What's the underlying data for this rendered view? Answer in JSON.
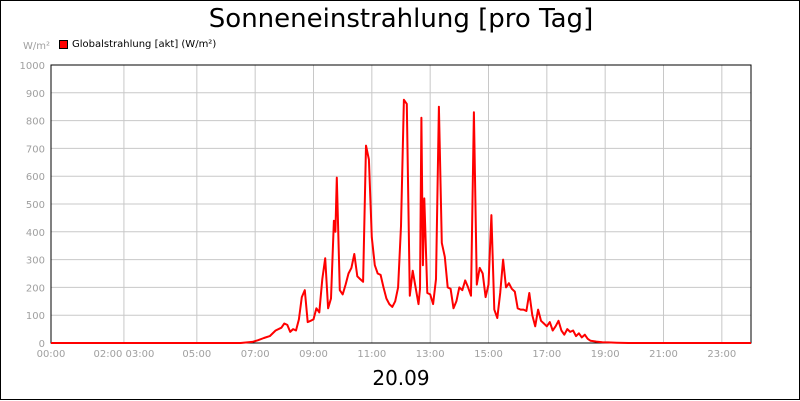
{
  "title": "Sonneneinstrahlung [pro Tag]",
  "date": "20.09",
  "unit": "W/m²",
  "chart_data": {
    "type": "line",
    "ylim": [
      0,
      1000
    ],
    "xlim_hours": [
      0,
      24
    ],
    "grid": true,
    "legend_placement": "top-left",
    "y_ticks": [
      0,
      100,
      200,
      300,
      400,
      500,
      600,
      700,
      800,
      900,
      1000
    ],
    "x_tick_labels": [
      {
        "hour": 0,
        "label": "00:00"
      },
      {
        "hour": 2.5,
        "label": "02:00 03:00"
      },
      {
        "hour": 5,
        "label": "05:00"
      },
      {
        "hour": 7,
        "label": "07:00"
      },
      {
        "hour": 9,
        "label": "09:00"
      },
      {
        "hour": 11,
        "label": "11:00"
      },
      {
        "hour": 13,
        "label": "13:00"
      },
      {
        "hour": 15,
        "label": "15:00"
      },
      {
        "hour": 17,
        "label": "17:00"
      },
      {
        "hour": 19,
        "label": "19:00"
      },
      {
        "hour": 21,
        "label": "21:00"
      },
      {
        "hour": 23,
        "label": "23:00"
      }
    ],
    "series": [
      {
        "name": "Globalstrahlung [akt] (W/m²)",
        "color": "#ff0000",
        "x": [
          0,
          6.5,
          6.9,
          7.1,
          7.3,
          7.5,
          7.7,
          7.9,
          8.0,
          8.1,
          8.2,
          8.3,
          8.4,
          8.5,
          8.6,
          8.7,
          8.8,
          8.9,
          9.0,
          9.1,
          9.2,
          9.3,
          9.4,
          9.5,
          9.6,
          9.7,
          9.75,
          9.8,
          9.9,
          10.0,
          10.1,
          10.2,
          10.3,
          10.4,
          10.5,
          10.6,
          10.7,
          10.8,
          10.9,
          11.0,
          11.1,
          11.2,
          11.3,
          11.4,
          11.5,
          11.6,
          11.7,
          11.8,
          11.9,
          12.0,
          12.1,
          12.2,
          12.3,
          12.4,
          12.5,
          12.6,
          12.65,
          12.7,
          12.75,
          12.8,
          12.9,
          13.0,
          13.1,
          13.2,
          13.3,
          13.4,
          13.5,
          13.6,
          13.7,
          13.8,
          13.9,
          14.0,
          14.1,
          14.2,
          14.3,
          14.4,
          14.5,
          14.6,
          14.7,
          14.8,
          14.9,
          15.0,
          15.1,
          15.2,
          15.3,
          15.4,
          15.5,
          15.6,
          15.7,
          15.8,
          15.9,
          16.0,
          16.1,
          16.2,
          16.3,
          16.4,
          16.5,
          16.6,
          16.7,
          16.8,
          16.9,
          17.0,
          17.1,
          17.2,
          17.3,
          17.4,
          17.5,
          17.6,
          17.7,
          17.8,
          17.9,
          18.0,
          18.1,
          18.2,
          18.3,
          18.4,
          18.5,
          18.7,
          18.9,
          19.1,
          19.4,
          19.8,
          20.2,
          24
        ],
        "values": [
          0,
          0,
          4,
          10,
          18,
          25,
          45,
          55,
          70,
          65,
          40,
          50,
          45,
          85,
          165,
          190,
          75,
          80,
          85,
          125,
          110,
          230,
          305,
          125,
          160,
          440,
          400,
          595,
          190,
          175,
          210,
          250,
          270,
          320,
          240,
          230,
          220,
          710,
          660,
          380,
          280,
          250,
          245,
          200,
          160,
          140,
          130,
          150,
          200,
          420,
          875,
          860,
          170,
          260,
          200,
          140,
          195,
          810,
          280,
          520,
          180,
          175,
          140,
          230,
          850,
          360,
          310,
          200,
          195,
          125,
          150,
          200,
          190,
          225,
          200,
          170,
          830,
          210,
          270,
          250,
          165,
          210,
          460,
          120,
          90,
          180,
          300,
          200,
          215,
          195,
          185,
          125,
          120,
          120,
          115,
          180,
          100,
          60,
          120,
          80,
          70,
          60,
          75,
          45,
          60,
          80,
          45,
          30,
          50,
          40,
          45,
          25,
          35,
          20,
          30,
          15,
          8,
          5,
          3,
          2,
          1,
          0,
          0,
          0
        ]
      }
    ]
  }
}
